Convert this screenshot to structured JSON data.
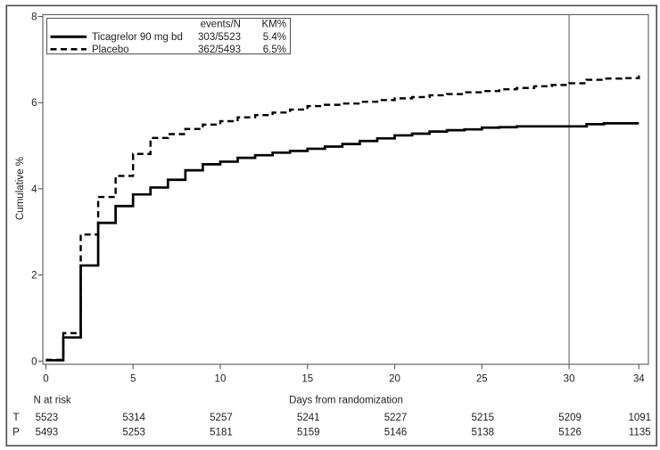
{
  "figure": {
    "background": "#ffffff",
    "outer_border_color": "#4d4d4d",
    "plot_box_color": "#5a5a5a",
    "reference_line_color": "#808080",
    "curve_color": "#000000"
  },
  "chart_data": {
    "type": "line",
    "subtype": "kaplan-meier-step",
    "title": "",
    "xlabel": "Days from randomization",
    "ylabel": "Cumulative %",
    "xlim": [
      0,
      34
    ],
    "ylim": [
      0,
      8
    ],
    "grid": false,
    "x_ticks": [
      0,
      5,
      10,
      15,
      20,
      25,
      30,
      34
    ],
    "y_ticks": [
      0,
      2,
      4,
      6,
      8
    ],
    "reference_line_x": 30,
    "x_days": [
      0,
      1,
      2,
      3,
      4,
      5,
      6,
      7,
      8,
      9,
      10,
      11,
      12,
      13,
      14,
      15,
      16,
      17,
      18,
      19,
      20,
      21,
      22,
      23,
      24,
      25,
      26,
      27,
      28,
      29,
      30,
      31,
      32,
      33,
      34
    ],
    "series": [
      {
        "name": "Ticagrelor 90 mg bd",
        "line_style": "solid",
        "events_n": "303/5523",
        "km_pct": "5.4%",
        "values": [
          0.02,
          0.55,
          2.22,
          3.21,
          3.6,
          3.87,
          4.03,
          4.21,
          4.43,
          4.57,
          4.63,
          4.72,
          4.78,
          4.84,
          4.88,
          4.93,
          4.98,
          5.04,
          5.11,
          5.17,
          5.24,
          5.28,
          5.33,
          5.36,
          5.38,
          5.42,
          5.43,
          5.45,
          5.45,
          5.45,
          5.45,
          5.5,
          5.52,
          5.52,
          5.52
        ]
      },
      {
        "name": "Placebo",
        "line_style": "dashed",
        "events_n": "362/5493",
        "km_pct": "6.5%",
        "values": [
          0.03,
          0.65,
          2.94,
          3.81,
          4.3,
          4.81,
          5.18,
          5.27,
          5.39,
          5.49,
          5.57,
          5.66,
          5.71,
          5.77,
          5.84,
          5.92,
          5.95,
          5.98,
          6.02,
          6.06,
          6.1,
          6.13,
          6.17,
          6.2,
          6.24,
          6.27,
          6.31,
          6.34,
          6.38,
          6.41,
          6.45,
          6.53,
          6.56,
          6.57,
          6.63
        ]
      }
    ],
    "legend": {
      "position": "top-left",
      "header_events": "events/N",
      "header_km": "KM%"
    },
    "at_risk": {
      "label": "N at risk",
      "days": [
        0,
        5,
        10,
        15,
        20,
        25,
        30,
        34
      ],
      "rows": [
        {
          "label": "T",
          "counts": [
            "5523",
            "5314",
            "5257",
            "5241",
            "5227",
            "5215",
            "5209",
            "1091"
          ]
        },
        {
          "label": "P",
          "counts": [
            "5493",
            "5253",
            "5181",
            "5159",
            "5146",
            "5138",
            "5126",
            "1135"
          ]
        }
      ]
    }
  }
}
